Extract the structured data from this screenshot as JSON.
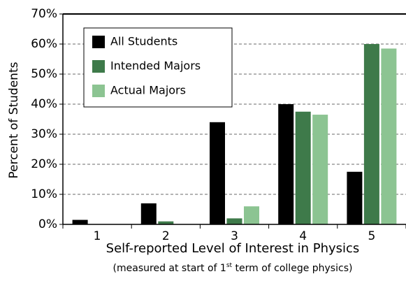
{
  "chart_data": {
    "type": "bar",
    "x_label": "Self-reported Level of Interest in Physics",
    "x_label_note": [
      "(measured at start of 1",
      "st",
      " term of college physics)"
    ],
    "y_label": "Percent of Students",
    "categories": [
      "1",
      "2",
      "3",
      "4",
      "5"
    ],
    "series": [
      {
        "name": "All Students",
        "color": "#000000",
        "values": [
          1.5,
          7,
          34,
          40,
          17.5
        ]
      },
      {
        "name": "Intended Majors",
        "color": "#3e7a4a",
        "values": [
          0,
          1,
          2,
          37.5,
          60
        ]
      },
      {
        "name": "Actual Majors",
        "color": "#8cc492",
        "values": [
          0,
          0,
          6,
          36.5,
          58.5
        ]
      }
    ],
    "ylim": [
      0,
      70
    ],
    "yticks": [
      {
        "value": 0,
        "label": "0%"
      },
      {
        "value": 10,
        "label": "10%"
      },
      {
        "value": 20,
        "label": "20%"
      },
      {
        "value": 30,
        "label": "30%"
      },
      {
        "value": 40,
        "label": "40%"
      },
      {
        "value": 50,
        "label": "50%"
      },
      {
        "value": 60,
        "label": "60%"
      },
      {
        "value": 70,
        "label": "70%"
      }
    ],
    "grid": true,
    "legend": "upper left"
  }
}
